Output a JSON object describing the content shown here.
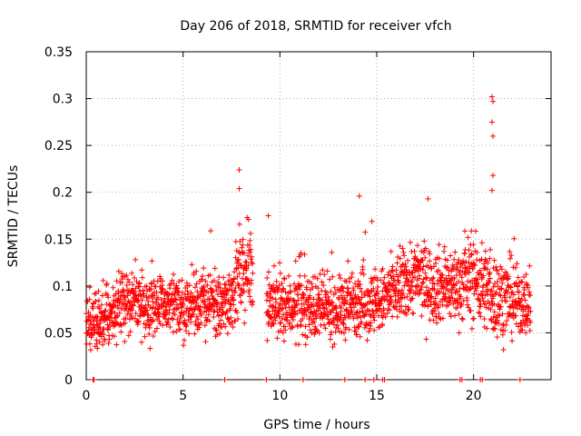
{
  "chart_data": {
    "type": "scatter",
    "title": "Day 206 of 2018, SRMTID for receiver vfch",
    "xlabel": "GPS time / hours",
    "ylabel": "SRMTID / TECUs",
    "xlim": [
      0,
      24
    ],
    "ylim": [
      0,
      0.35
    ],
    "x_ticks": [
      0,
      5,
      10,
      15,
      20
    ],
    "x_tick_labels": [
      "0",
      "5",
      "10",
      "15",
      "20"
    ],
    "y_ticks": [
      0,
      0.05,
      0.1,
      0.15,
      0.2,
      0.25,
      0.3,
      0.35
    ],
    "y_tick_labels": [
      "0",
      "0.05",
      "0.1",
      "0.15",
      "0.2",
      "0.25",
      "0.3",
      "0.35"
    ],
    "grid": true,
    "marker": "+",
    "series_color": "#ff0000",
    "data_gap_hours": [
      8.6,
      9.3
    ],
    "zero_points_x": [
      0.35,
      0.4,
      7.15,
      9.3,
      11.2,
      13.35,
      14.4,
      14.85,
      15.3,
      15.4,
      19.3,
      19.4,
      20.35,
      20.45,
      22.4
    ],
    "notable_points": [
      {
        "x": 7.9,
        "y": 0.224
      },
      {
        "x": 7.9,
        "y": 0.204
      },
      {
        "x": 9.4,
        "y": 0.175
      },
      {
        "x": 14.1,
        "y": 0.196
      },
      {
        "x": 14.75,
        "y": 0.169
      },
      {
        "x": 17.65,
        "y": 0.193
      },
      {
        "x": 20.95,
        "y": 0.302
      },
      {
        "x": 21.0,
        "y": 0.297
      },
      {
        "x": 20.95,
        "y": 0.275
      },
      {
        "x": 21.0,
        "y": 0.26
      },
      {
        "x": 21.0,
        "y": 0.218
      },
      {
        "x": 20.95,
        "y": 0.202
      }
    ],
    "activity_profile": [
      {
        "x": 0.0,
        "mean": 0.06,
        "spread": 0.025
      },
      {
        "x": 1.0,
        "mean": 0.065,
        "spread": 0.028
      },
      {
        "x": 2.0,
        "mean": 0.085,
        "spread": 0.032
      },
      {
        "x": 3.0,
        "mean": 0.08,
        "spread": 0.028
      },
      {
        "x": 4.0,
        "mean": 0.08,
        "spread": 0.03
      },
      {
        "x": 5.0,
        "mean": 0.075,
        "spread": 0.028
      },
      {
        "x": 6.0,
        "mean": 0.085,
        "spread": 0.03
      },
      {
        "x": 7.0,
        "mean": 0.075,
        "spread": 0.03
      },
      {
        "x": 8.0,
        "mean": 0.11,
        "spread": 0.04
      },
      {
        "x": 8.6,
        "mean": 0.12,
        "spread": 0.035
      },
      {
        "x": 9.3,
        "mean": 0.085,
        "spread": 0.035
      },
      {
        "x": 10.0,
        "mean": 0.075,
        "spread": 0.032
      },
      {
        "x": 11.0,
        "mean": 0.08,
        "spread": 0.03
      },
      {
        "x": 12.0,
        "mean": 0.075,
        "spread": 0.028
      },
      {
        "x": 13.0,
        "mean": 0.075,
        "spread": 0.028
      },
      {
        "x": 14.0,
        "mean": 0.085,
        "spread": 0.032
      },
      {
        "x": 15.0,
        "mean": 0.08,
        "spread": 0.03
      },
      {
        "x": 16.0,
        "mean": 0.095,
        "spread": 0.032
      },
      {
        "x": 17.0,
        "mean": 0.11,
        "spread": 0.035
      },
      {
        "x": 18.0,
        "mean": 0.1,
        "spread": 0.035
      },
      {
        "x": 19.0,
        "mean": 0.1,
        "spread": 0.035
      },
      {
        "x": 20.0,
        "mean": 0.11,
        "spread": 0.04
      },
      {
        "x": 21.0,
        "mean": 0.09,
        "spread": 0.04
      },
      {
        "x": 22.0,
        "mean": 0.085,
        "spread": 0.035
      },
      {
        "x": 22.9,
        "mean": 0.08,
        "spread": 0.03
      }
    ]
  }
}
